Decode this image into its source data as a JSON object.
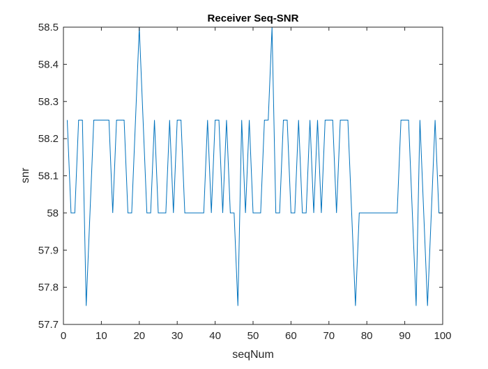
{
  "chart_data": {
    "type": "line",
    "title": "Receiver Seq-SNR",
    "xlabel": "seqNum",
    "ylabel": "snr",
    "xlim": [
      0,
      100
    ],
    "ylim": [
      57.7,
      58.5
    ],
    "grid": false,
    "x_ticks": [
      0,
      10,
      20,
      30,
      40,
      50,
      60,
      70,
      80,
      90,
      100
    ],
    "x_tick_labels": [
      "0",
      "10",
      "20",
      "30",
      "40",
      "50",
      "60",
      "70",
      "80",
      "90",
      "100"
    ],
    "y_ticks": [
      57.7,
      57.8,
      57.9,
      58.0,
      58.1,
      58.2,
      58.3,
      58.4,
      58.5
    ],
    "y_tick_labels": [
      "57.7",
      "57.8",
      "57.9",
      "58",
      "58.1",
      "58.2",
      "58.3",
      "58.4",
      "58.5"
    ],
    "series": [
      {
        "color": "#0072BD",
        "x": [
          1,
          2,
          3,
          4,
          5,
          6,
          7,
          8,
          9,
          10,
          11,
          12,
          13,
          14,
          15,
          16,
          17,
          18,
          19,
          20,
          21,
          22,
          23,
          24,
          25,
          26,
          27,
          28,
          29,
          30,
          31,
          32,
          33,
          34,
          35,
          36,
          37,
          38,
          39,
          40,
          41,
          42,
          43,
          44,
          45,
          46,
          47,
          48,
          49,
          50,
          51,
          52,
          53,
          54,
          55,
          56,
          57,
          58,
          59,
          60,
          61,
          62,
          63,
          64,
          65,
          66,
          67,
          68,
          69,
          70,
          71,
          72,
          73,
          74,
          75,
          76,
          77,
          78,
          79,
          80,
          81,
          82,
          83,
          84,
          85,
          86,
          87,
          88,
          89,
          90,
          91,
          92,
          93,
          94,
          95,
          96,
          97,
          98,
          99,
          100
        ],
        "y": [
          58.25,
          58.0,
          58.0,
          58.25,
          58.25,
          57.75,
          58.0,
          58.25,
          58.25,
          58.25,
          58.25,
          58.25,
          58.0,
          58.25,
          58.25,
          58.25,
          58.0,
          58.0,
          58.25,
          58.5,
          58.25,
          58.0,
          58.0,
          58.25,
          58.0,
          58.0,
          58.0,
          58.25,
          58.0,
          58.25,
          58.25,
          58.0,
          58.0,
          58.0,
          58.0,
          58.0,
          58.0,
          58.25,
          58.0,
          58.25,
          58.25,
          58.0,
          58.25,
          58.0,
          58.0,
          57.75,
          58.25,
          58.0,
          58.25,
          58.0,
          58.0,
          58.0,
          58.25,
          58.25,
          58.5,
          58.0,
          58.0,
          58.25,
          58.25,
          58.0,
          58.0,
          58.25,
          58.0,
          58.0,
          58.25,
          58.0,
          58.25,
          58.0,
          58.25,
          58.25,
          58.25,
          58.0,
          58.25,
          58.25,
          58.25,
          58.0,
          57.75,
          58.0,
          58.0,
          58.0,
          58.0,
          58.0,
          58.0,
          58.0,
          58.0,
          58.0,
          58.0,
          58.0,
          58.25,
          58.25,
          58.25,
          58.0,
          57.75,
          58.25,
          58.0,
          57.75,
          58.0,
          58.25,
          58.0,
          58.0
        ]
      }
    ]
  }
}
